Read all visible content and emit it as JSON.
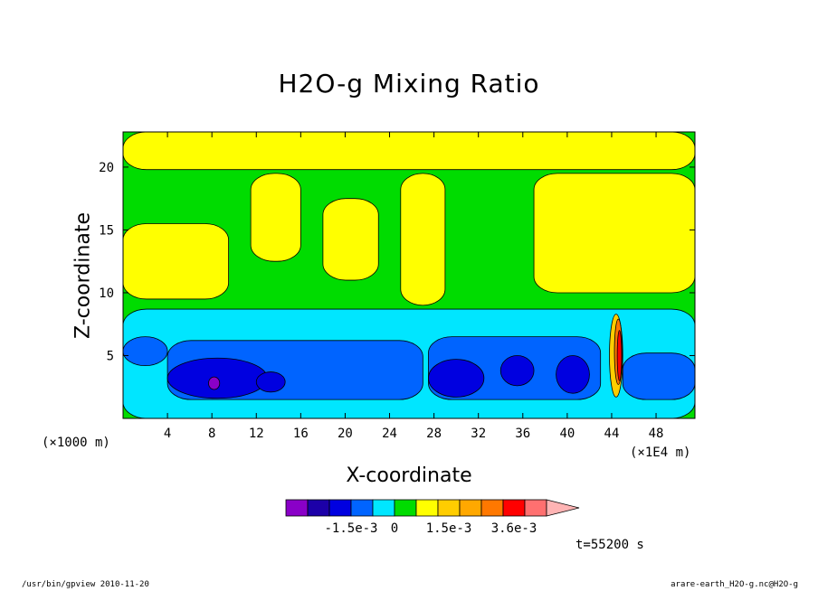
{
  "chart_data": {
    "type": "heatmap",
    "title": "H2O-g Mixing Ratio",
    "xlabel": "X-coordinate",
    "ylabel": "Z-coordinate",
    "x_unit_label": "(×1000 m)",
    "x_scale_label": "(×1E4 m)",
    "xlim": [
      0,
      51.5
    ],
    "ylim": [
      0,
      22.8
    ],
    "x_ticks": [
      4,
      8,
      12,
      16,
      20,
      24,
      28,
      32,
      36,
      40,
      44,
      48
    ],
    "y_ticks": [
      5,
      10,
      15,
      20
    ],
    "colorbar": {
      "colors": [
        "#8a00c8",
        "#1c00a8",
        "#0000e0",
        "#0064ff",
        "#00e6ff",
        "#00dc00",
        "#ffff00",
        "#ffcd00",
        "#ffa800",
        "#ff7800",
        "#ff0000",
        "#ff7070",
        "#ffb4b4"
      ],
      "labels": [
        "-1.5e-3",
        "0",
        "1.5e-3",
        "3.6e-3"
      ]
    },
    "regions": [
      {
        "level": 6,
        "shape": "band",
        "x1": 0,
        "x2": 51.5,
        "y1": 19.8,
        "y2": 22.8
      },
      {
        "level": 6,
        "shape": "band",
        "x1": 0,
        "x2": 9.5,
        "y1": 9.5,
        "y2": 15.5
      },
      {
        "level": 6,
        "shape": "band",
        "x1": 11.5,
        "x2": 16,
        "y1": 12.5,
        "y2": 19.5
      },
      {
        "level": 6,
        "shape": "band",
        "x1": 18,
        "x2": 23,
        "y1": 11,
        "y2": 17.5
      },
      {
        "level": 6,
        "shape": "band",
        "x1": 25,
        "x2": 29,
        "y1": 9,
        "y2": 19.5
      },
      {
        "level": 6,
        "shape": "band",
        "x1": 37,
        "x2": 51.5,
        "y1": 10,
        "y2": 19.5
      },
      {
        "level": 4,
        "shape": "band",
        "x1": 0,
        "x2": 51.5,
        "y1": 0,
        "y2": 8.7
      },
      {
        "level": 3,
        "shape": "band",
        "x1": 0,
        "x2": 4,
        "y1": 4.2,
        "y2": 6.5
      },
      {
        "level": 3,
        "shape": "band",
        "x1": 4,
        "x2": 27,
        "y1": 1.5,
        "y2": 6.2
      },
      {
        "level": 3,
        "shape": "band",
        "x1": 27.5,
        "x2": 43,
        "y1": 1.5,
        "y2": 6.5
      },
      {
        "level": 3,
        "shape": "band",
        "x1": 45,
        "x2": 51.5,
        "y1": 1.5,
        "y2": 5.2
      },
      {
        "level": 2,
        "shape": "blob",
        "cx": 8.5,
        "cy": 3.2,
        "rx": 4.5,
        "ry": 1.6
      },
      {
        "level": 2,
        "shape": "blob",
        "cx": 13.3,
        "cy": 2.9,
        "rx": 1.3,
        "ry": 0.8
      },
      {
        "level": 2,
        "shape": "blob",
        "cx": 30,
        "cy": 3.2,
        "rx": 2.5,
        "ry": 1.5
      },
      {
        "level": 2,
        "shape": "blob",
        "cx": 35.5,
        "cy": 3.8,
        "rx": 1.5,
        "ry": 1.2
      },
      {
        "level": 2,
        "shape": "blob",
        "cx": 40.5,
        "cy": 3.5,
        "rx": 1.5,
        "ry": 1.5
      },
      {
        "level": 0,
        "shape": "blob",
        "cx": 8.2,
        "cy": 2.8,
        "rx": 0.5,
        "ry": 0.5
      },
      {
        "level": 7,
        "shape": "blob",
        "cx": 44.4,
        "cy": 5,
        "rx": 0.6,
        "ry": 3.3
      },
      {
        "level": 9,
        "shape": "blob",
        "cx": 44.6,
        "cy": 5.3,
        "rx": 0.35,
        "ry": 2.6
      },
      {
        "level": 10,
        "shape": "blob",
        "cx": 44.7,
        "cy": 5,
        "rx": 0.2,
        "ry": 2
      }
    ]
  },
  "time_label": "t=55200 s",
  "footer": {
    "left": "/usr/bin/gpview   2010-11-20",
    "right": "arare-earth_H2O-g.nc@H2O-g"
  }
}
